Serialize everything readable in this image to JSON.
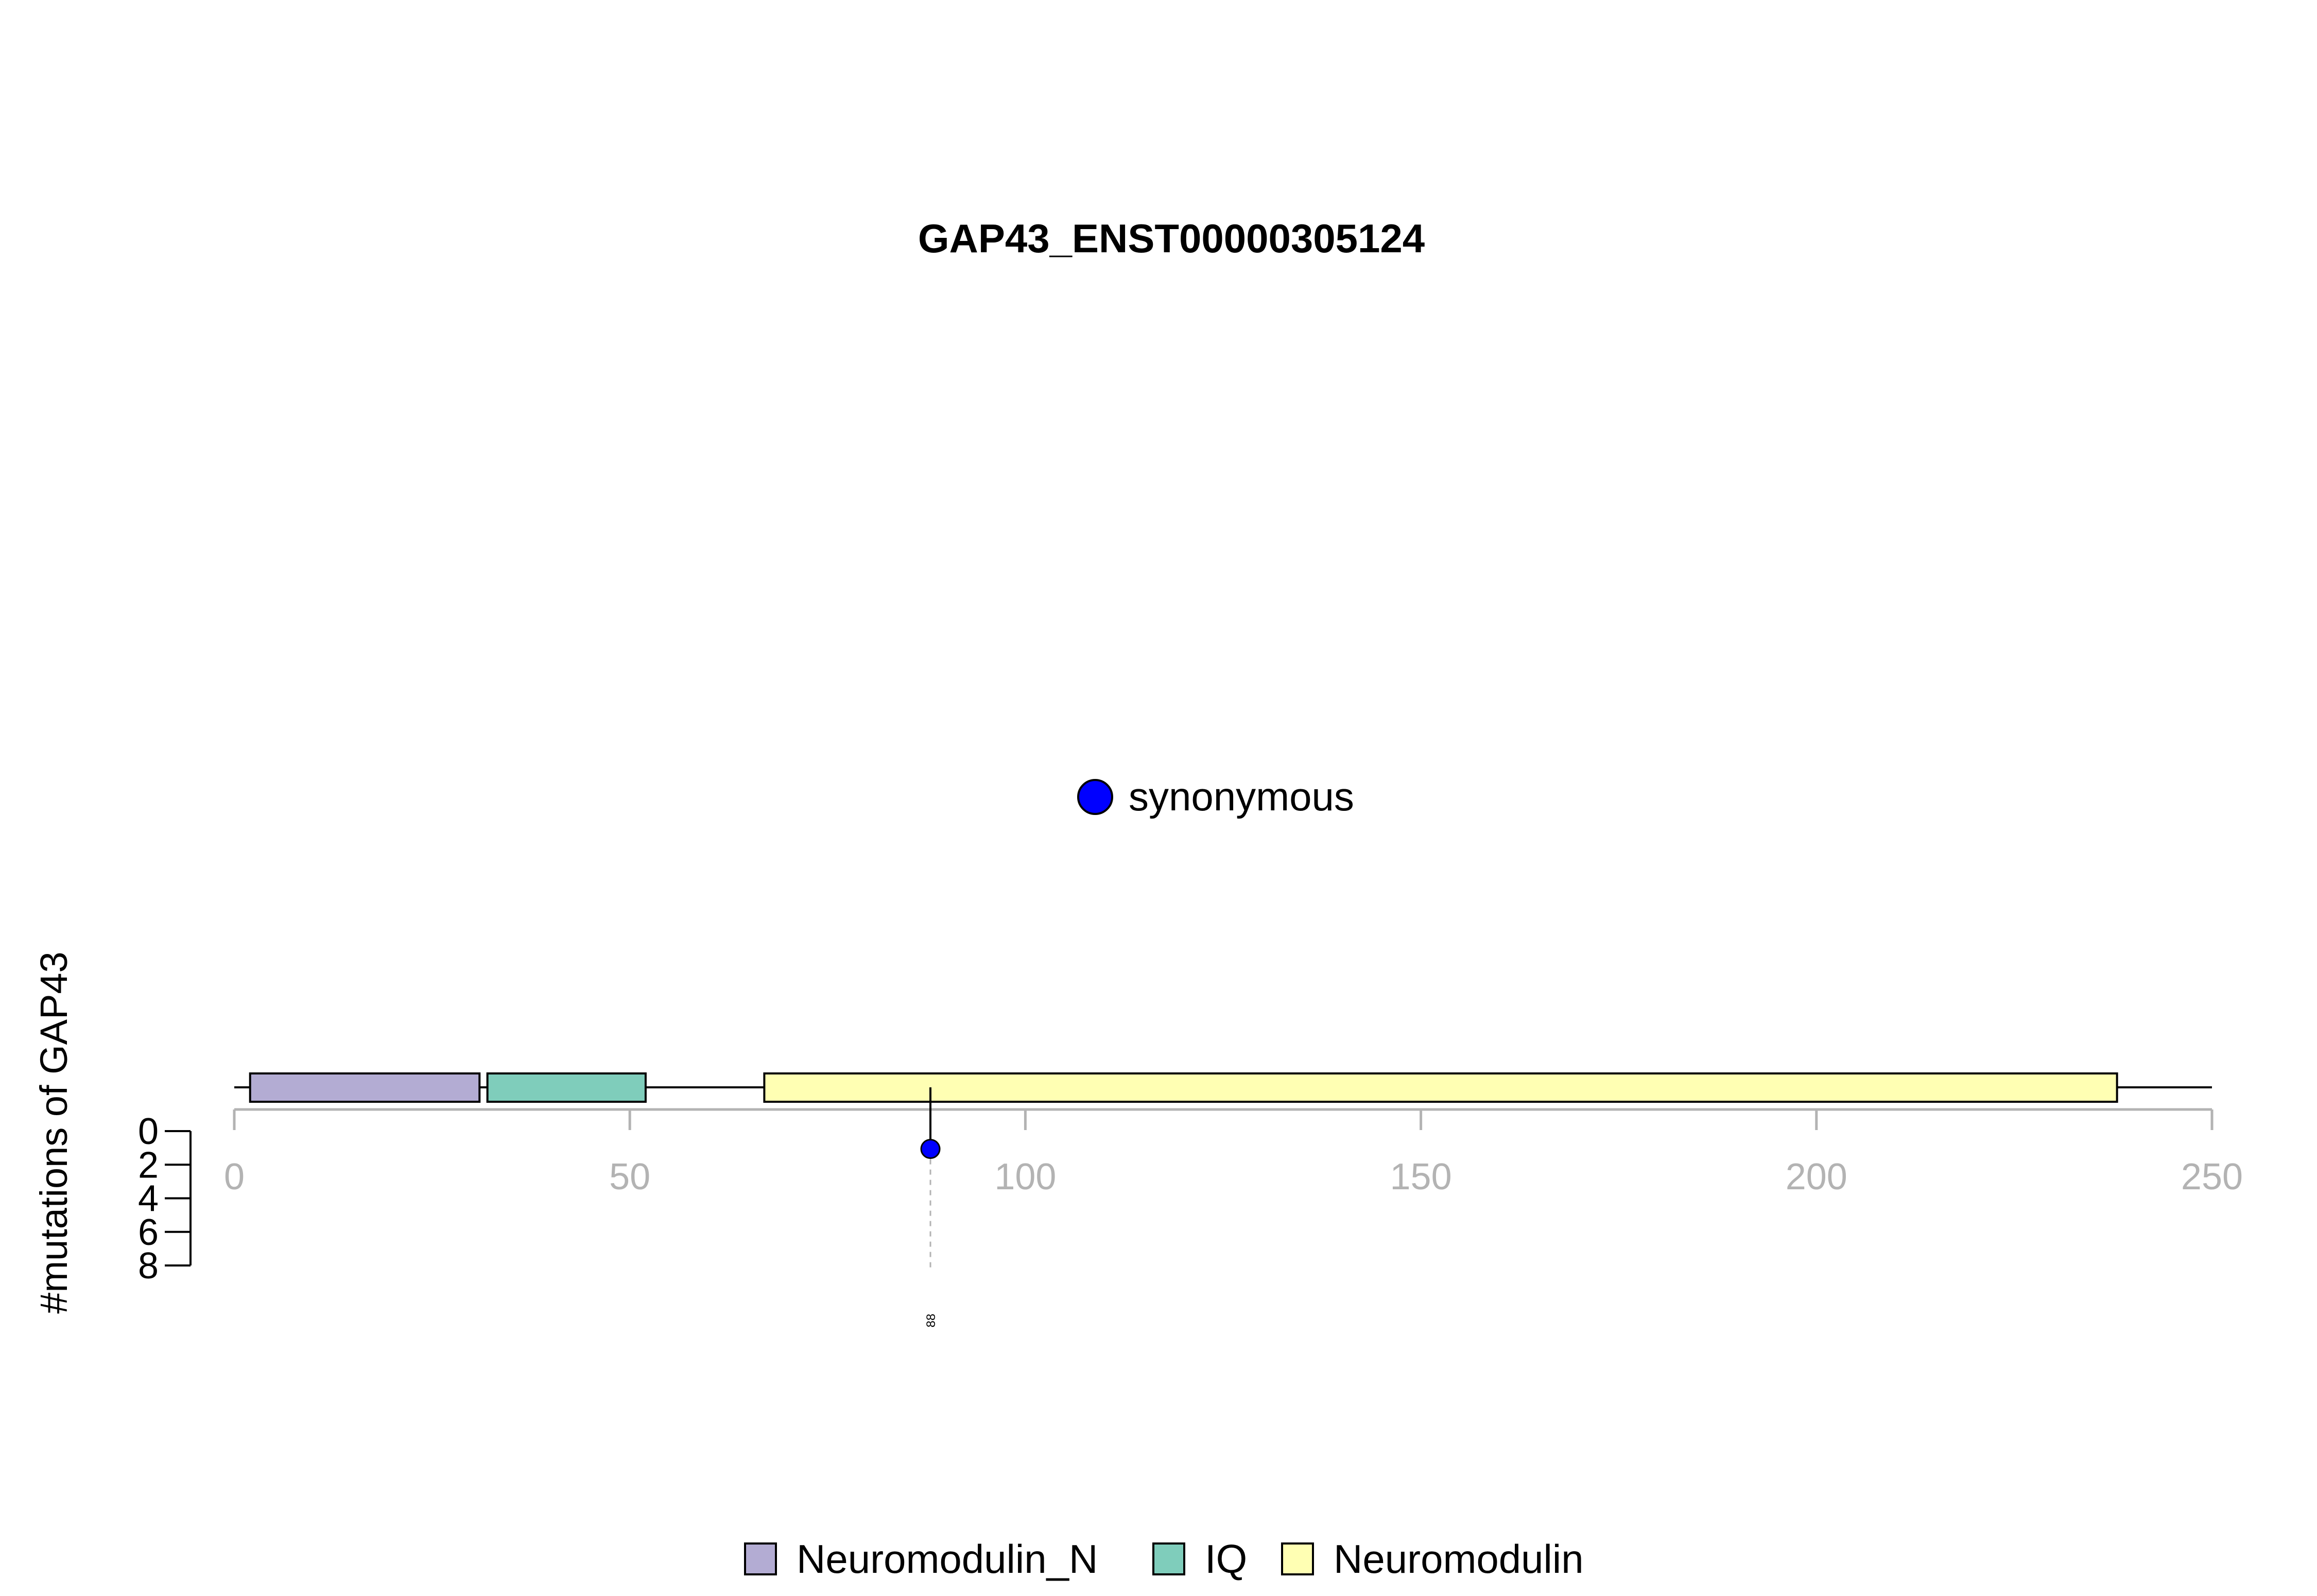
{
  "chart_data": {
    "type": "lollipop",
    "title": "GAP43_ENST00000305124",
    "ylabel": "#mutations of GAP43",
    "xlim": [
      0,
      250
    ],
    "x_ticks": [
      "0",
      "50",
      "100",
      "150",
      "200",
      "250"
    ],
    "y_ticks": [
      "0",
      "2",
      "4",
      "6",
      "8"
    ],
    "ylim": [
      0,
      8
    ],
    "protein_length": 250,
    "domains": [
      {
        "name": "Neuromodulin_N",
        "start": 2,
        "end": 31,
        "color": "#b3acd3"
      },
      {
        "name": "IQ",
        "start": 32,
        "end": 52,
        "color": "#7fcdbb"
      },
      {
        "name": "Neuromodulin",
        "start": 67,
        "end": 238,
        "color": "#ffffb3"
      }
    ],
    "mutations": [
      {
        "position": 88,
        "label": "88",
        "count": 1,
        "type": "synonymous",
        "color": "#0000ff"
      }
    ],
    "mutation_legend": [
      {
        "label": "synonymous",
        "color": "#0000ff"
      }
    ],
    "domain_legend": [
      {
        "label": "Neuromodulin_N",
        "color": "#b3acd3"
      },
      {
        "label": "IQ",
        "color": "#7fcdbb"
      },
      {
        "label": "Neuromodulin",
        "color": "#ffffb3"
      }
    ]
  }
}
